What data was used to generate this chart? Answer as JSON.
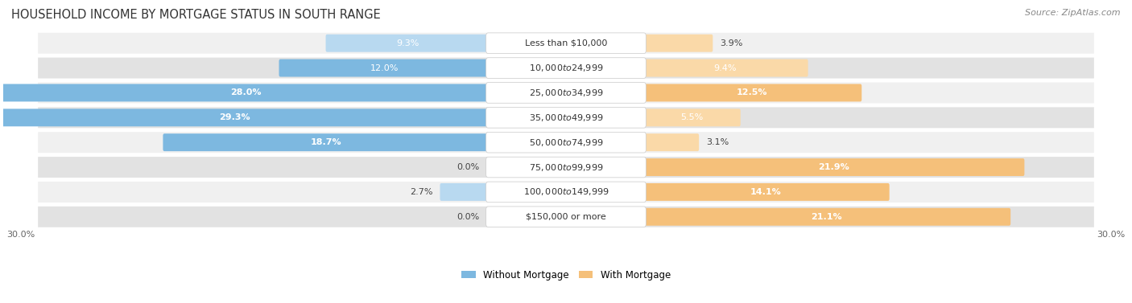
{
  "title": "HOUSEHOLD INCOME BY MORTGAGE STATUS IN SOUTH RANGE",
  "source": "Source: ZipAtlas.com",
  "categories": [
    "Less than $10,000",
    "$10,000 to $24,999",
    "$25,000 to $34,999",
    "$35,000 to $49,999",
    "$50,000 to $74,999",
    "$75,000 to $99,999",
    "$100,000 to $149,999",
    "$150,000 or more"
  ],
  "without_mortgage": [
    9.3,
    12.0,
    28.0,
    29.3,
    18.7,
    0.0,
    2.7,
    0.0
  ],
  "with_mortgage": [
    3.9,
    9.4,
    12.5,
    5.5,
    3.1,
    21.9,
    14.1,
    21.1
  ],
  "color_without": "#7db8e0",
  "color_without_light": "#b8d9f0",
  "color_with": "#f5c07a",
  "color_with_light": "#fad9a8",
  "row_bg_light": "#f0f0f0",
  "row_bg_dark": "#e2e2e2",
  "xlim": 30.0,
  "legend_without": "Without Mortgage",
  "legend_with": "With Mortgage",
  "title_fontsize": 10.5,
  "source_fontsize": 8,
  "label_fontsize": 8,
  "value_fontsize": 8,
  "tick_fontsize": 8
}
